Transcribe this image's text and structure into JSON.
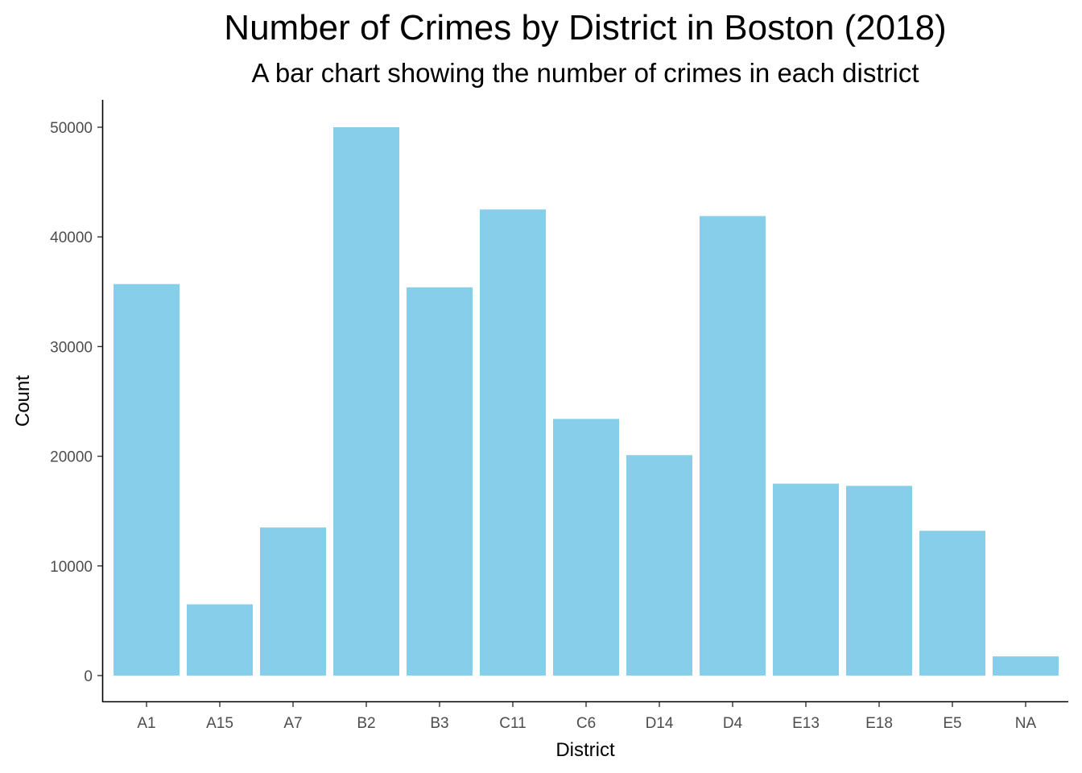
{
  "chart_data": {
    "type": "bar",
    "title": "Number of Crimes by District in Boston (2018)",
    "subtitle": "A bar chart showing the number of crimes in each district",
    "xlabel": "District",
    "ylabel": "Count",
    "categories": [
      "A1",
      "A15",
      "A7",
      "B2",
      "B3",
      "C11",
      "C6",
      "D14",
      "D4",
      "E13",
      "E18",
      "E5",
      "NA"
    ],
    "values": [
      35700,
      6500,
      13500,
      50000,
      35400,
      42500,
      23400,
      20100,
      41900,
      17500,
      17300,
      13200,
      1750
    ],
    "y_ticks": [
      0,
      10000,
      20000,
      30000,
      40000,
      50000
    ],
    "y_tick_labels": [
      "0",
      "10000",
      "20000",
      "30000",
      "40000",
      "50000"
    ],
    "ylim": [
      0,
      52500
    ],
    "grid": false,
    "legend": "none",
    "bar_color": "#87CEEB",
    "axis_color": "#000000",
    "tick_label_color": "#4d4d4d"
  }
}
